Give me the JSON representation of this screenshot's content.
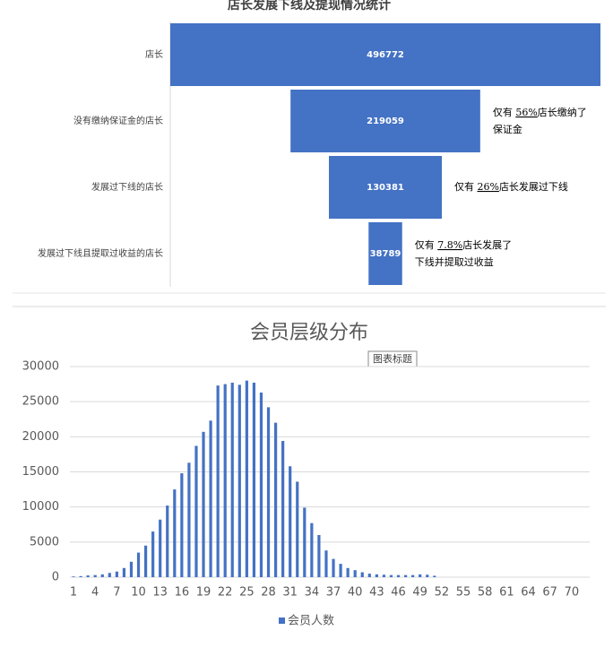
{
  "chart_data": [
    {
      "type": "funnel",
      "title": "店长发展下线及提现情况统计",
      "categories": [
        "店长",
        "没有缴纳保证金的店长",
        "发展过下线的店长",
        "发展过下线且提取过收益的店长"
      ],
      "values": [
        496772,
        219059,
        130381,
        38789
      ],
      "color": "#4472c4",
      "annotations": [
        null,
        {
          "before": "仅有 ",
          "emphasis": "56%",
          "after": "店长缴纳了",
          "line2": "保证金"
        },
        {
          "before": "仅有 ",
          "emphasis": "26%",
          "after": "店长发展过下线",
          "line2": null
        },
        {
          "before": "仅有 ",
          "emphasis": "7.8%",
          "after": "店长发展了",
          "line2": "下线并提取过收益"
        }
      ]
    },
    {
      "type": "bar",
      "title": "会员层级分布",
      "annotation": "图表标题",
      "categories": [
        "1",
        null,
        null,
        "4",
        null,
        null,
        "7",
        null,
        null,
        "10",
        null,
        null,
        "13",
        null,
        null,
        "16",
        null,
        null,
        "19",
        null,
        null,
        "22",
        null,
        null,
        "25",
        null,
        null,
        "28",
        null,
        null,
        "31",
        null,
        null,
        "34",
        null,
        null,
        "37",
        null,
        null,
        "40",
        null,
        null,
        "43",
        null,
        null,
        "46",
        null,
        null,
        "49",
        null,
        null,
        "52",
        null,
        null,
        "55",
        null,
        null,
        "58",
        null,
        null,
        "61",
        null,
        null,
        "64",
        null,
        null,
        "67",
        null,
        null,
        "70",
        null,
        null
      ],
      "series": [
        {
          "name": "会员人数",
          "color": "#4472c4",
          "values": [
            100,
            150,
            250,
            300,
            400,
            600,
            800,
            1300,
            2200,
            3500,
            4500,
            6500,
            8200,
            10200,
            12500,
            14800,
            16300,
            18700,
            20700,
            22300,
            27300,
            27500,
            27700,
            27400,
            28000,
            27700,
            26300,
            24200,
            22000,
            19400,
            15800,
            13600,
            9900,
            7700,
            6000,
            3800,
            2600,
            1900,
            1300,
            1000,
            700,
            500,
            400,
            350,
            300,
            300,
            300,
            300,
            400,
            350,
            200,
            0,
            0,
            0,
            0,
            0,
            0,
            0,
            0,
            0,
            0,
            0,
            0,
            0,
            0,
            0,
            0,
            0,
            0,
            0,
            0,
            0
          ]
        }
      ],
      "ylim": [
        0,
        30000
      ],
      "yticks": [
        0,
        5000,
        10000,
        15000,
        20000,
        25000,
        30000
      ],
      "grid": true,
      "legend": "bottom"
    }
  ]
}
